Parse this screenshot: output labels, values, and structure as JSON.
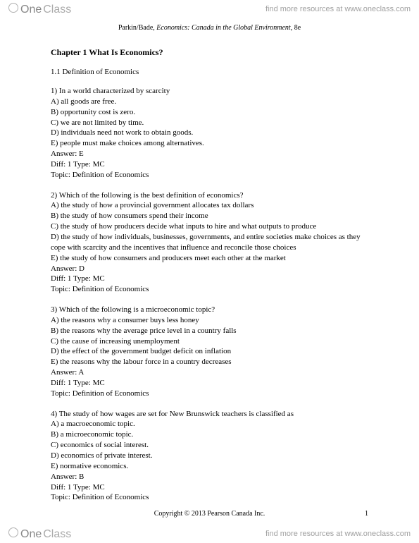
{
  "brand": {
    "logo_one": "One",
    "logo_class": "Class",
    "tagline": "find more resources at www.oneclass.com"
  },
  "book": {
    "authors": "Parkin/Bade,",
    "title": "Economics: Canada in the Global Environment,",
    "edition": "8e"
  },
  "chapter": {
    "label": "Chapter 1   What Is Economics?"
  },
  "section": {
    "label": "1.1   Definition of Economics"
  },
  "questions": [
    {
      "stem": "1) In a world characterized by scarcity",
      "choices": [
        "A) all goods are free.",
        "B) opportunity cost is zero.",
        "C) we are not limited by time.",
        "D) individuals need not work to obtain goods.",
        "E) people must make choices among alternatives."
      ],
      "answer": "Answer:  E",
      "diff": "Diff: 1    Type: MC",
      "topic": "Topic:  Definition of Economics"
    },
    {
      "stem": "2) Which of the following is the best definition of economics?",
      "choices": [
        "A) the study of how a provincial government allocates tax dollars",
        "B) the study of how consumers spend their income",
        "C) the study of how producers decide what inputs to hire and what outputs to produce",
        "D) the study of how individuals, businesses, governments, and entire societies make choices as they cope with scarcity and the incentives that influence and reconcile those choices",
        "E) the study of how consumers and producers meet each other at the market"
      ],
      "answer": "Answer:  D",
      "diff": "Diff: 1    Type: MC",
      "topic": "Topic:  Definition of Economics"
    },
    {
      "stem": "3) Which of the following is a microeconomic topic?",
      "choices": [
        "A) the reasons why a consumer buys less honey",
        "B) the reasons why the average price level in a country falls",
        "C) the cause of increasing unemployment",
        "D) the effect of the government budget deficit on inflation",
        "E) the reasons why the labour force in a country decreases"
      ],
      "answer": "Answer:  A",
      "diff": "Diff: 1    Type: MC",
      "topic": "Topic:  Definition of Economics"
    },
    {
      "stem": "4) The study of how wages are set for New Brunswick teachers is classified as",
      "choices": [
        "A) a macroeconomic topic.",
        "B) a microeconomic topic.",
        "C) economics of social interest.",
        "D) economics of private interest.",
        "E) normative economics."
      ],
      "answer": "Answer:  B",
      "diff": "Diff: 1    Type: MC",
      "topic": "Topic:  Definition of Economics"
    }
  ],
  "footer": {
    "copyright": "Copyright © 2013 Pearson Canada Inc.",
    "page_number": "1"
  },
  "colors": {
    "background": "#ffffff",
    "text": "#000000",
    "watermark": "#9a9a9a"
  }
}
